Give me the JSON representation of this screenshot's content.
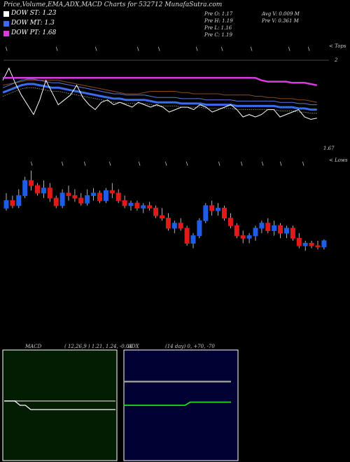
{
  "header": {
    "title": "Price,Volume,EMA,ADX,MACD Charts for 532712  MunafaSutra.com"
  },
  "legend": [
    {
      "label": "DOW ST: 1.23",
      "color": "#ffffff"
    },
    {
      "label": "DOW MT: 1.3",
      "color": "#3a6cf0"
    },
    {
      "label": "DOW PT: 1.68",
      "color": "#d63ce0"
    }
  ],
  "stats": {
    "left": [
      "Pre   O: 1.17",
      "Pre   H: 1.19",
      "Pre   L: 1.16",
      "Pre   C: 1.19"
    ],
    "right": [
      "Avg V: 0.009 M",
      "Pre   V: 0.361 M"
    ]
  },
  "labels": {
    "top": "< Tops",
    "bottom": "< Lows",
    "price_top": "2",
    "price_low": "1.67"
  },
  "macd": {
    "title": "MACD",
    "params": "( 12,26,9 ) 1.21, 1.24, -0.03"
  },
  "adx": {
    "title": "ADX",
    "params": "(14  day) 0, +70, -70"
  },
  "colors": {
    "up": "#1e5de8",
    "down": "#e01919",
    "ema_long": "#d63ce0",
    "ema_mid": "#8a4a1a",
    "ema_blue": "#3a6cf0"
  },
  "chart_data": {
    "type": "candlestick",
    "candles": [
      [
        1.3,
        1.42,
        1.28,
        1.36
      ],
      [
        1.36,
        1.4,
        1.3,
        1.32
      ],
      [
        1.32,
        1.45,
        1.3,
        1.4
      ],
      [
        1.4,
        1.55,
        1.38,
        1.52
      ],
      [
        1.52,
        1.6,
        1.44,
        1.48
      ],
      [
        1.48,
        1.5,
        1.4,
        1.42
      ],
      [
        1.42,
        1.52,
        1.38,
        1.46
      ],
      [
        1.46,
        1.5,
        1.35,
        1.38
      ],
      [
        1.38,
        1.4,
        1.3,
        1.32
      ],
      [
        1.32,
        1.45,
        1.3,
        1.42
      ],
      [
        1.42,
        1.48,
        1.36,
        1.4
      ],
      [
        1.4,
        1.45,
        1.35,
        1.38
      ],
      [
        1.38,
        1.42,
        1.32,
        1.34
      ],
      [
        1.34,
        1.45,
        1.32,
        1.4
      ],
      [
        1.4,
        1.46,
        1.36,
        1.42
      ],
      [
        1.42,
        1.44,
        1.34,
        1.36
      ],
      [
        1.36,
        1.46,
        1.34,
        1.44
      ],
      [
        1.44,
        1.5,
        1.38,
        1.42
      ],
      [
        1.42,
        1.45,
        1.34,
        1.36
      ],
      [
        1.36,
        1.4,
        1.3,
        1.32
      ],
      [
        1.32,
        1.36,
        1.28,
        1.34
      ],
      [
        1.34,
        1.36,
        1.28,
        1.3
      ],
      [
        1.3,
        1.34,
        1.26,
        1.32
      ],
      [
        1.32,
        1.35,
        1.28,
        1.3
      ],
      [
        1.3,
        1.32,
        1.22,
        1.24
      ],
      [
        1.24,
        1.3,
        1.2,
        1.22
      ],
      [
        1.22,
        1.26,
        1.12,
        1.14
      ],
      [
        1.14,
        1.2,
        1.1,
        1.18
      ],
      [
        1.18,
        1.22,
        1.12,
        1.14
      ],
      [
        1.14,
        1.16,
        1.0,
        1.02
      ],
      [
        1.02,
        1.1,
        0.98,
        1.08
      ],
      [
        1.08,
        1.22,
        1.06,
        1.2
      ],
      [
        1.2,
        1.34,
        1.18,
        1.32
      ],
      [
        1.32,
        1.36,
        1.24,
        1.28
      ],
      [
        1.28,
        1.34,
        1.24,
        1.3
      ],
      [
        1.3,
        1.32,
        1.2,
        1.22
      ],
      [
        1.22,
        1.26,
        1.14,
        1.16
      ],
      [
        1.16,
        1.18,
        1.06,
        1.08
      ],
      [
        1.08,
        1.12,
        1.02,
        1.06
      ],
      [
        1.06,
        1.1,
        1.02,
        1.08
      ],
      [
        1.08,
        1.16,
        1.04,
        1.14
      ],
      [
        1.14,
        1.2,
        1.1,
        1.18
      ],
      [
        1.18,
        1.22,
        1.1,
        1.12
      ],
      [
        1.12,
        1.2,
        1.08,
        1.16
      ],
      [
        1.16,
        1.18,
        1.06,
        1.1
      ],
      [
        1.1,
        1.16,
        1.06,
        1.14
      ],
      [
        1.14,
        1.16,
        1.04,
        1.06
      ],
      [
        1.06,
        1.1,
        0.98,
        1.0
      ],
      [
        1.0,
        1.04,
        0.96,
        1.02
      ],
      [
        1.02,
        1.04,
        0.98,
        1.0
      ],
      [
        1.0,
        1.04,
        0.97,
        0.99
      ],
      [
        0.99,
        1.05,
        0.97,
        1.04
      ]
    ],
    "ema_long": [
      1.62,
      1.62,
      1.62,
      1.62,
      1.62,
      1.62,
      1.62,
      1.62,
      1.62,
      1.62,
      1.62,
      1.62,
      1.62,
      1.62,
      1.62,
      1.62,
      1.62,
      1.62,
      1.62,
      1.62,
      1.62,
      1.62,
      1.62,
      1.62,
      1.62,
      1.62,
      1.62,
      1.62,
      1.62,
      1.62,
      1.62,
      1.62,
      1.62,
      1.62,
      1.62,
      1.62,
      1.62,
      1.62,
      1.62,
      1.62,
      1.62,
      1.62,
      1.6,
      1.59,
      1.59,
      1.59,
      1.59,
      1.58,
      1.58,
      1.58,
      1.57,
      1.56
    ],
    "ema_mid": [
      1.56,
      1.57,
      1.58,
      1.59,
      1.6,
      1.6,
      1.6,
      1.6,
      1.6,
      1.6,
      1.59,
      1.58,
      1.57,
      1.56,
      1.55,
      1.54,
      1.53,
      1.52,
      1.51,
      1.5,
      1.49,
      1.49,
      1.49,
      1.5,
      1.51,
      1.51,
      1.51,
      1.51,
      1.51,
      1.5,
      1.5,
      1.49,
      1.49,
      1.49,
      1.49,
      1.49,
      1.48,
      1.48,
      1.48,
      1.48,
      1.48,
      1.47,
      1.47,
      1.46,
      1.46,
      1.45,
      1.45,
      1.45,
      1.44,
      1.44,
      1.43,
      1.42
    ],
    "ema_blue": [
      1.5,
      1.52,
      1.54,
      1.56,
      1.57,
      1.57,
      1.56,
      1.55,
      1.54,
      1.54,
      1.53,
      1.52,
      1.51,
      1.5,
      1.49,
      1.48,
      1.47,
      1.46,
      1.45,
      1.45,
      1.44,
      1.44,
      1.44,
      1.44,
      1.43,
      1.42,
      1.42,
      1.42,
      1.42,
      1.41,
      1.41,
      1.41,
      1.41,
      1.4,
      1.4,
      1.4,
      1.4,
      1.4,
      1.39,
      1.39,
      1.39,
      1.39,
      1.39,
      1.39,
      1.39,
      1.38,
      1.38,
      1.38,
      1.37,
      1.37,
      1.36,
      1.36
    ],
    "close_line": [
      1.6,
      1.7,
      1.58,
      1.48,
      1.4,
      1.32,
      1.44,
      1.6,
      1.5,
      1.4,
      1.44,
      1.48,
      1.56,
      1.46,
      1.4,
      1.36,
      1.42,
      1.44,
      1.4,
      1.42,
      1.4,
      1.38,
      1.42,
      1.4,
      1.38,
      1.4,
      1.38,
      1.34,
      1.36,
      1.38,
      1.38,
      1.36,
      1.4,
      1.38,
      1.34,
      1.36,
      1.38,
      1.4,
      1.36,
      1.3,
      1.32,
      1.3,
      1.32,
      1.36,
      1.36,
      1.3,
      1.32,
      1.34,
      1.36,
      1.3,
      1.28,
      1.29
    ],
    "macd_line": [
      1.24,
      1.24,
      1.24,
      1.23,
      1.23,
      1.22,
      1.22,
      1.22,
      1.22,
      1.22,
      1.22,
      1.22,
      1.22,
      1.22,
      1.22,
      1.22,
      1.22,
      1.22,
      1.22,
      1.22,
      1.22,
      1.22
    ],
    "signal_line": [
      1.24,
      1.24,
      1.24,
      1.24,
      1.24,
      1.24,
      1.24,
      1.24,
      1.24,
      1.24,
      1.24,
      1.24,
      1.24,
      1.24,
      1.24,
      1.24,
      1.24,
      1.24,
      1.24,
      1.24,
      1.24,
      1.24
    ],
    "adx_plus": [
      0,
      0,
      0,
      0,
      0,
      0,
      0,
      0,
      0,
      0,
      0,
      0,
      0,
      0,
      0,
      0,
      0,
      0,
      0,
      0,
      0,
      0
    ],
    "adx_green": [
      -30,
      -30,
      -30,
      -30,
      -30,
      -30,
      -30,
      -30,
      -30,
      -30,
      -30,
      -30,
      -30,
      -26,
      -26,
      -26,
      -26,
      -26,
      -26,
      -26,
      -26,
      -26
    ]
  }
}
